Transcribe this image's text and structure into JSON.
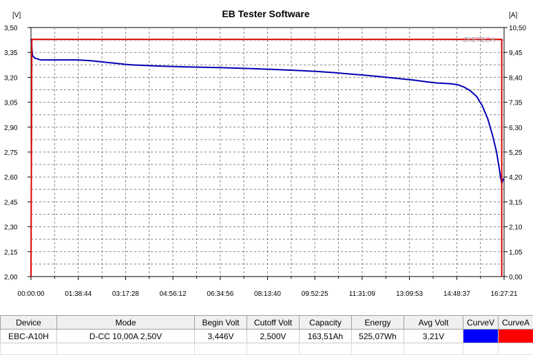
{
  "window": {
    "title": "EB Tester Software"
  },
  "watermark": "ZKETECH",
  "chart_data": {
    "type": "line",
    "title": "EB Tester Software",
    "y_left_unit": "[V]",
    "y_right_unit": "[A]",
    "y_left_range": [
      2.0,
      3.5
    ],
    "y_right_range": [
      0.0,
      10.5
    ],
    "y_left_ticks": [
      "3,50",
      "3,35",
      "3,20",
      "3,05",
      "2,90",
      "2,75",
      "2,60",
      "2,45",
      "2,30",
      "2,15",
      "2,00"
    ],
    "y_right_ticks": [
      "10,50",
      "9,45",
      "8,40",
      "7,35",
      "6,30",
      "5,25",
      "4,20",
      "3,15",
      "2,10",
      "1,05",
      "0,00"
    ],
    "x_ticks": [
      "00:00:00",
      "01:38:44",
      "03:17:28",
      "04:56:12",
      "06:34:56",
      "08:13:40",
      "09:52:25",
      "11:31:09",
      "13:09:53",
      "14:48:37",
      "16:27:21"
    ],
    "x_range_seconds": [
      0,
      59241
    ],
    "grid": true,
    "series": [
      {
        "axis": "left",
        "color": "#0000b4",
        "x": [
          0,
          200,
          500,
          1200,
          3000,
          4800,
          5924,
          7500,
          8500,
          9500,
          10500,
          11500,
          12500,
          14000,
          16000,
          18000,
          20000,
          22000,
          24000,
          26000,
          28000,
          30000,
          32000,
          34000,
          36000,
          38000,
          40000,
          42000,
          44000,
          46000,
          48000,
          49500,
          51000,
          52500,
          53500,
          54200,
          55000,
          55800,
          56500,
          57200,
          57800,
          58300,
          58600,
          58800,
          58950,
          59100,
          59241
        ],
        "y": [
          3.43,
          3.33,
          3.315,
          3.305,
          3.305,
          3.305,
          3.305,
          3.3,
          3.295,
          3.29,
          3.285,
          3.28,
          3.275,
          3.272,
          3.268,
          3.265,
          3.262,
          3.26,
          3.258,
          3.255,
          3.252,
          3.248,
          3.244,
          3.24,
          3.235,
          3.228,
          3.22,
          3.212,
          3.203,
          3.193,
          3.183,
          3.173,
          3.165,
          3.162,
          3.155,
          3.142,
          3.12,
          3.085,
          3.03,
          2.95,
          2.85,
          2.75,
          2.66,
          2.6,
          2.56,
          2.585,
          2.59
        ]
      },
      {
        "axis": "right",
        "color": "#e00000",
        "x": [
          0,
          100,
          58950,
          58950
        ],
        "y": [
          0.0,
          10.0,
          10.0,
          0.0
        ]
      }
    ]
  },
  "summary": {
    "columns": [
      "Device",
      "Mode",
      "Begin Volt",
      "Cutoff Volt",
      "Capacity",
      "Energy",
      "Avg Volt",
      "CurveV",
      "CurveA"
    ],
    "row": {
      "device": "EBC-A10H",
      "mode": "D-CC  10,00A  2,50V",
      "begin_volt": "3,446V",
      "cutoff_volt": "2,500V",
      "capacity": "163,51Ah",
      "energy": "525,07Wh",
      "avg_volt": "3,21V"
    },
    "curve_v_color": "#0000ff",
    "curve_a_color": "#ff0000"
  }
}
